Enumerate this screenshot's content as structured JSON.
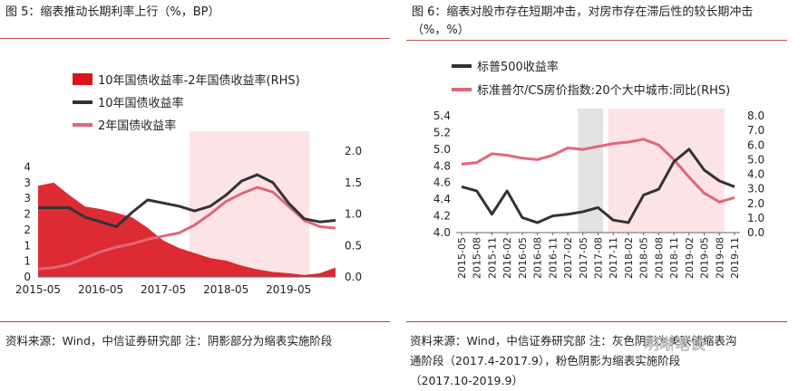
{
  "figure_left": {
    "title": "图 5：缩表推动长期利率上行（%，BP）",
    "source": "资料来源：Wind，中信证券研究部   注：阴影部分为缩表实施阶段"
  },
  "figure_right": {
    "title_line1": "图 6：缩表对股市存在短期冲击，对房市存在滞后性的较长期冲击",
    "title_line2": "（%，%）",
    "source_line1": "资料来源：Wind，中信证券研究部   注：灰色阴影为美联储缩表沟",
    "source_line2": "通阶段（2017.4-2017.9），粉色阴影为缩表实施阶段",
    "source_line3": "（2017.10-2019.9）"
  },
  "watermark": "明晰笔谈",
  "chart_data": [
    {
      "type": "line",
      "title": "",
      "legend_position": "top-left",
      "grid": false,
      "x_range": [
        "2015-05",
        "2020-02"
      ],
      "xticks": [
        "2015-05",
        "2016-05",
        "2017-05",
        "2018-05",
        "2019-05"
      ],
      "y_left": {
        "range": [
          0,
          4
        ],
        "ticks": [
          "0",
          "1",
          "1",
          "2",
          "2",
          "3",
          "3",
          "4"
        ],
        "tick_values": [
          0,
          0.5,
          1,
          1.5,
          2,
          2.5,
          3,
          3.5
        ]
      },
      "y_right": {
        "range": [
          0,
          2.0
        ],
        "ticks": [
          "0.0",
          "0.5",
          "1.0",
          "1.5",
          "2.0"
        ]
      },
      "shaded_regions": [
        {
          "start": "2017-10",
          "end": "2019-09",
          "color": "#fbe3e6"
        }
      ],
      "months": [
        "2015-05",
        "2015-08",
        "2015-11",
        "2016-02",
        "2016-05",
        "2016-08",
        "2016-11",
        "2017-02",
        "2017-05",
        "2017-08",
        "2017-11",
        "2018-02",
        "2018-05",
        "2018-08",
        "2018-11",
        "2019-02",
        "2019-05",
        "2019-08",
        "2019-11",
        "2020-02"
      ],
      "series": [
        {
          "name": "10年国债收益率-2年国债收益率(RHS)",
          "axis": "right",
          "style": "area",
          "color": "#d9141e",
          "values": [
            1.45,
            1.5,
            1.3,
            1.12,
            1.08,
            1.02,
            0.95,
            0.78,
            0.58,
            0.46,
            0.38,
            0.3,
            0.26,
            0.18,
            0.12,
            0.08,
            0.06,
            0.03,
            0.06,
            0.15
          ]
        },
        {
          "name": "10年国债收益率",
          "axis": "left",
          "style": "line",
          "color": "#333333",
          "values": [
            2.2,
            2.2,
            2.2,
            1.9,
            1.75,
            1.6,
            2.05,
            2.45,
            2.35,
            2.25,
            2.1,
            2.25,
            2.6,
            3.05,
            3.25,
            3.0,
            2.35,
            1.85,
            1.75,
            1.8
          ]
        },
        {
          "name": "2年国债收益率",
          "axis": "left",
          "style": "line",
          "color": "#e2657a",
          "values": [
            0.25,
            0.3,
            0.4,
            0.6,
            0.8,
            0.95,
            1.05,
            1.2,
            1.3,
            1.4,
            1.65,
            2.0,
            2.4,
            2.65,
            2.85,
            2.7,
            2.25,
            1.8,
            1.6,
            1.55
          ]
        }
      ]
    },
    {
      "type": "line",
      "title": "",
      "legend_position": "top-left",
      "grid": false,
      "months": [
        "2015-05",
        "2015-08",
        "2015-11",
        "2016-02",
        "2016-05",
        "2016-08",
        "2016-11",
        "2017-02",
        "2017-05",
        "2017-08",
        "2017-11",
        "2018-02",
        "2018-05",
        "2018-08",
        "2018-11",
        "2019-02",
        "2019-05",
        "2019-08",
        "2019-11"
      ],
      "y_left": {
        "range": [
          4.0,
          5.4
        ],
        "ticks": [
          "4.0",
          "4.2",
          "4.4",
          "4.6",
          "4.8",
          "5.0",
          "5.2",
          "5.4"
        ]
      },
      "y_right": {
        "range": [
          0.0,
          8.0
        ],
        "ticks": [
          "0.0",
          "1.0",
          "2.0",
          "3.0",
          "4.0",
          "5.0",
          "6.0",
          "7.0",
          "8.0"
        ]
      },
      "shaded_regions": [
        {
          "start": "2017-04",
          "end": "2017-09",
          "color": "#e2e2e2"
        },
        {
          "start": "2017-10",
          "end": "2019-09",
          "color": "#fbe3e6"
        }
      ],
      "series": [
        {
          "name": "标普500收益率",
          "axis": "left",
          "style": "line",
          "color": "#333333",
          "values": [
            4.55,
            4.5,
            4.22,
            4.5,
            4.18,
            4.12,
            4.2,
            4.22,
            4.25,
            4.3,
            4.15,
            4.12,
            4.45,
            4.52,
            4.85,
            5.0,
            4.75,
            4.62,
            4.55
          ]
        },
        {
          "name": "标准普尔/CS房价指数:20个大中城市:同比(RHS)",
          "axis": "right",
          "style": "line",
          "color": "#e2657a",
          "values": [
            4.7,
            4.8,
            5.4,
            5.3,
            5.1,
            5.0,
            5.3,
            5.8,
            5.7,
            5.9,
            6.1,
            6.2,
            6.4,
            6.0,
            5.0,
            3.8,
            2.7,
            2.1,
            2.4
          ]
        }
      ]
    }
  ]
}
